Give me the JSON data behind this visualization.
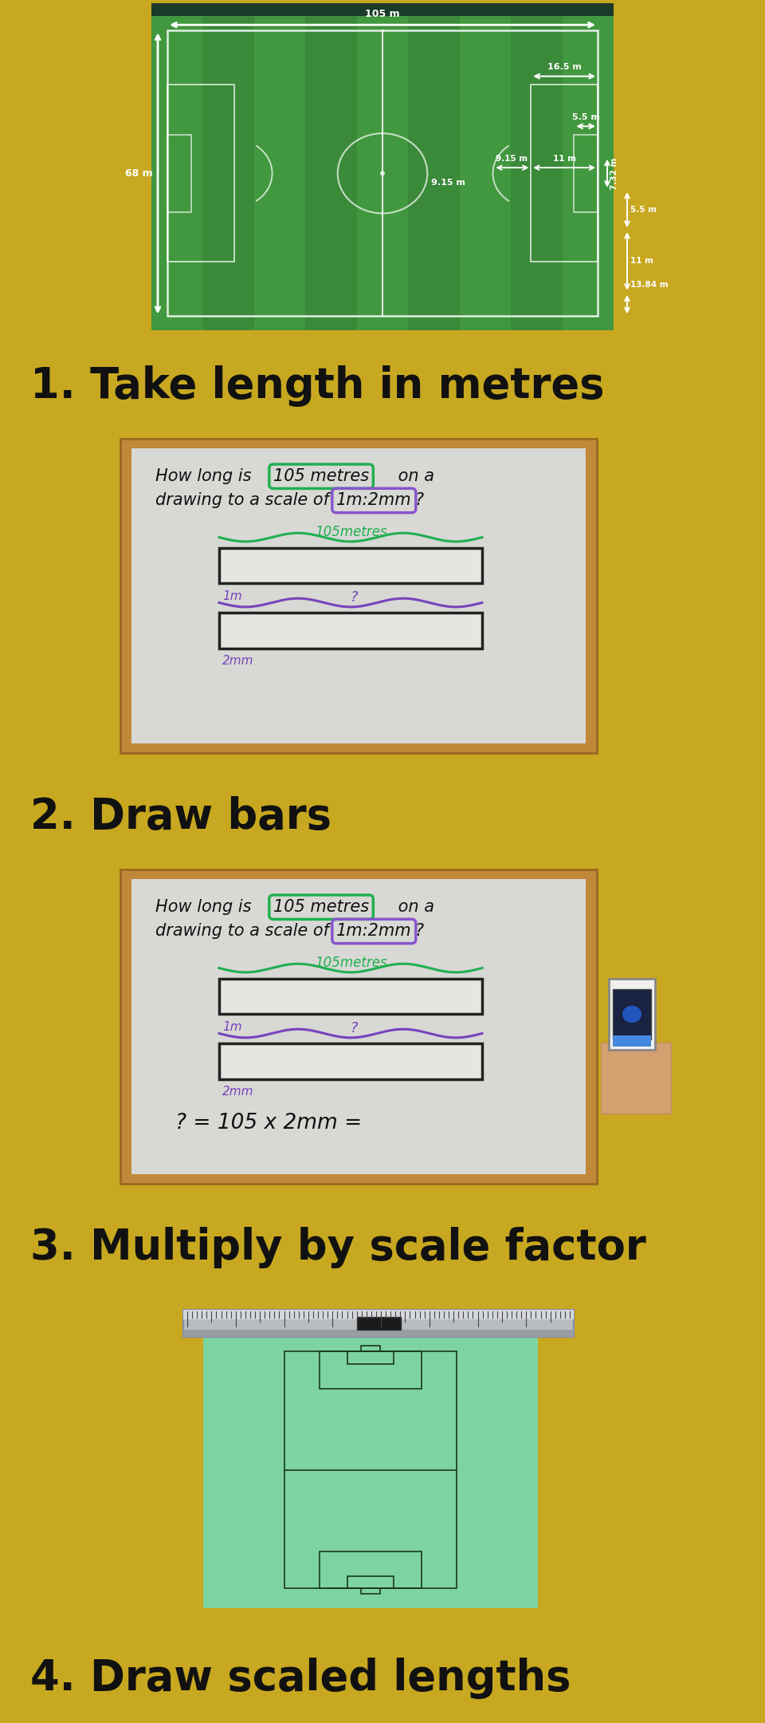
{
  "bg_gold": "#c8a820",
  "bg_purple": "#7b50a5",
  "label_bg_1": "#e8e4d0",
  "label_bg_2": "#ddd8e8",
  "label_bg_3": "#ddd8e8",
  "label_bg_4": "#e8e4d0",
  "labels": [
    "1. Take length in metres",
    "2. Draw bars",
    "3. Multiply by scale factor",
    "4. Draw scaled lengths"
  ],
  "label_fontsize": 38,
  "pitch_green_dark": "#3a8a3a",
  "pitch_green_light": "#4aaa47",
  "pitch_green_stripe": "#449944",
  "whiteboard_frame": "#c08838",
  "whiteboard_surface": "#dcdcda",
  "paper_green": "#7dd4a0",
  "ruler_silver": "#b8bcc0"
}
